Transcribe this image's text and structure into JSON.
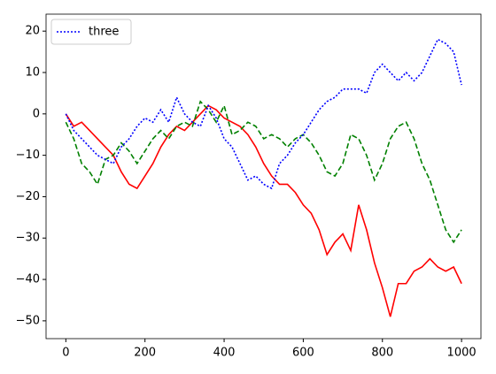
{
  "chart_data": {
    "type": "line",
    "x": [
      0,
      20,
      40,
      60,
      80,
      100,
      120,
      140,
      160,
      180,
      200,
      220,
      240,
      260,
      280,
      300,
      320,
      340,
      360,
      380,
      400,
      420,
      440,
      460,
      480,
      500,
      520,
      540,
      560,
      580,
      600,
      620,
      640,
      660,
      680,
      700,
      720,
      740,
      760,
      780,
      800,
      820,
      840,
      860,
      880,
      900,
      920,
      940,
      960,
      980,
      1000
    ],
    "series": [
      {
        "color": "#ff0000",
        "linestyle": "solid",
        "values": [
          0,
          -3,
          -2,
          -4,
          -6,
          -8,
          -10,
          -14,
          -17,
          -18,
          -15,
          -12,
          -8,
          -5,
          -3,
          -4,
          -2,
          0,
          2,
          1,
          -1,
          -2,
          -3,
          -5,
          -8,
          -12,
          -15,
          -17,
          -17,
          -19,
          -22,
          -24,
          -28,
          -34,
          -31,
          -29,
          -33,
          -22,
          -28,
          -36,
          -42,
          -49,
          -41,
          -41,
          -38,
          -37,
          -35,
          -37,
          -38,
          -37,
          -41
        ]
      },
      {
        "color": "#008000",
        "linestyle": "dashed",
        "values": [
          -2,
          -6,
          -12,
          -14,
          -17,
          -11,
          -10,
          -7,
          -9,
          -12,
          -9,
          -6,
          -4,
          -6,
          -3,
          -2,
          -3,
          3,
          1,
          -2,
          2,
          -5,
          -4,
          -2,
          -3,
          -6,
          -5,
          -6,
          -8,
          -6,
          -5,
          -7,
          -10,
          -14,
          -15,
          -12,
          -5,
          -6,
          -10,
          -16,
          -12,
          -6,
          -3,
          -2,
          -6,
          -12,
          -16,
          -22,
          -28,
          -31,
          -28
        ]
      },
      {
        "name": "three",
        "color": "#0000ff",
        "linestyle": "dotted",
        "values": [
          0,
          -4,
          -6,
          -8,
          -10,
          -11,
          -12,
          -8,
          -6,
          -3,
          -1,
          -2,
          1,
          -2,
          4,
          0,
          -2,
          -3,
          2,
          -1,
          -6,
          -8,
          -12,
          -16,
          -15,
          -17,
          -18,
          -12,
          -10,
          -7,
          -5,
          -2,
          1,
          3,
          4,
          6,
          6,
          6,
          5,
          10,
          12,
          10,
          8,
          10,
          8,
          10,
          14,
          18,
          17,
          15,
          7
        ]
      }
    ],
    "xlim": [
      -50,
      1049
    ],
    "ylim": [
      -54.3,
      24.1
    ],
    "xticks": [
      0,
      200,
      400,
      600,
      800,
      1000
    ],
    "yticks": [
      {
        "value": -50,
        "label": "−50"
      },
      {
        "value": -40,
        "label": "−40"
      },
      {
        "value": -30,
        "label": "−30"
      },
      {
        "value": -20,
        "label": "−20"
      },
      {
        "value": -10,
        "label": "−10"
      },
      0,
      10,
      20
    ],
    "legend": "upper left",
    "grid": false
  }
}
